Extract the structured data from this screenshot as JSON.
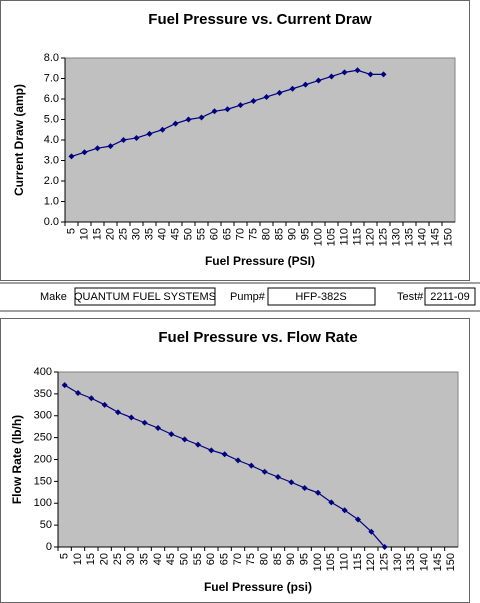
{
  "chart_data": [
    {
      "type": "line",
      "title": "Fuel Pressure vs. Current Draw",
      "x_label": "Fuel Pressure (PSI)",
      "y_label": "Current Draw (amp)",
      "categories": [
        "5",
        "10",
        "15",
        "20",
        "25",
        "30",
        "35",
        "40",
        "45",
        "50",
        "55",
        "60",
        "65",
        "70",
        "75",
        "80",
        "85",
        "90",
        "95",
        "100",
        "105",
        "110",
        "115",
        "120",
        "125",
        "130",
        "135",
        "140",
        "145",
        "150"
      ],
      "series": [
        {
          "color": "#000080",
          "values": [
            3.2,
            3.4,
            3.6,
            3.7,
            4.0,
            4.1,
            4.3,
            4.5,
            4.8,
            5.0,
            5.1,
            5.4,
            5.5,
            5.7,
            5.9,
            6.1,
            6.3,
            6.5,
            6.7,
            6.9,
            7.1,
            7.3,
            7.4,
            7.2,
            7.2,
            null,
            null,
            null,
            null,
            null
          ]
        }
      ],
      "ylim": [
        0,
        8
      ],
      "yticks": [
        {
          "value": 0,
          "label": "0.0"
        },
        {
          "value": 1,
          "label": "1.0"
        },
        {
          "value": 2,
          "label": "2.0"
        },
        {
          "value": 3,
          "label": "3.0"
        },
        {
          "value": 4,
          "label": "4.0"
        },
        {
          "value": 5,
          "label": "5.0"
        },
        {
          "value": 6,
          "label": "6.0"
        },
        {
          "value": 7,
          "label": "7.0"
        },
        {
          "value": 8,
          "label": "8.0"
        }
      ],
      "grid": false,
      "background": "#c0c0c0"
    },
    {
      "type": "line",
      "title": "Fuel Pressure vs. Flow Rate",
      "x_label": "Fuel Pressure (psi)",
      "y_label": "Flow Rate (lb/h)",
      "categories": [
        "5",
        "10",
        "15",
        "20",
        "25",
        "30",
        "35",
        "40",
        "45",
        "50",
        "55",
        "60",
        "65",
        "70",
        "75",
        "80",
        "85",
        "90",
        "95",
        "100",
        "105",
        "110",
        "115",
        "120",
        "125",
        "130",
        "135",
        "140",
        "145",
        "150"
      ],
      "series": [
        {
          "color": "#000080",
          "values": [
            370,
            352,
            340,
            325,
            308,
            296,
            284,
            272,
            258,
            246,
            234,
            221,
            212,
            198,
            186,
            172,
            160,
            148,
            135,
            124,
            102,
            84,
            63,
            35,
            0,
            null,
            null,
            null,
            null,
            null
          ]
        }
      ],
      "ylim": [
        0,
        400
      ],
      "yticks": [
        0,
        50,
        100,
        150,
        200,
        250,
        300,
        350,
        400
      ],
      "grid": false,
      "background": "#c0c0c0"
    }
  ],
  "form": {
    "make_label": "Make",
    "make": "QUANTUM FUEL SYSTEMS",
    "pump_label": "Pump#",
    "pump": "HFP-382S",
    "test_label": "Test#",
    "test": "2211-09"
  }
}
